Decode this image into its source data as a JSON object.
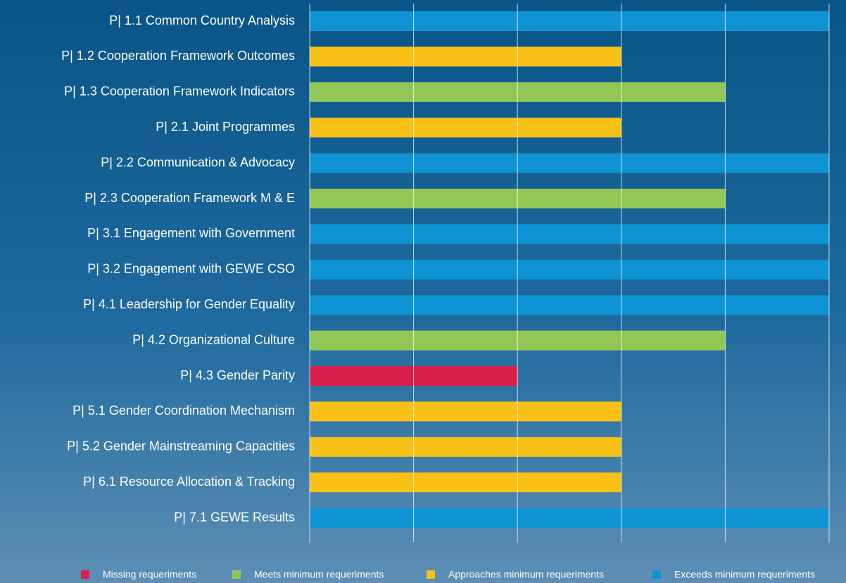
{
  "chart_data": {
    "type": "hbar",
    "categories": [
      "P| 1.1 Common Country Analysis",
      "P| 1.2 Cooperation Framework Outcomes",
      "P| 1.3 Cooperation Framework Indicators",
      "P| 2.1 Joint Programmes",
      "P| 2.2 Communication & Advocacy",
      "P| 2.3 Cooperation Framework M & E",
      "P| 3.1 Engagement with Government",
      "P| 3.2 Engagement with GEWE CSO",
      "P| 4.1 Leadership for Gender Equality",
      "P| 4.2 Organizational Culture",
      "P| 4.3 Gender Parity",
      "P| 5.1 Gender Coordination Mechanism",
      "P| 5.2 Gender Mainstreaming Capacities",
      "P| 6.1 Resource Allocation & Tracking",
      "P| 7.1 GEWE Results"
    ],
    "series": [
      {
        "name": "Missing requeriments",
        "color": "#d81e4a",
        "values": [
          null,
          null,
          null,
          null,
          null,
          null,
          null,
          null,
          null,
          null,
          2,
          null,
          null,
          null,
          null
        ]
      },
      {
        "name": "Meets minimum requeriments",
        "color": "#92c756",
        "values": [
          null,
          null,
          4,
          null,
          null,
          4,
          null,
          null,
          null,
          4,
          null,
          null,
          null,
          null,
          null
        ]
      },
      {
        "name": "Approaches minimum requeriments",
        "color": "#f9c116",
        "values": [
          null,
          3,
          null,
          3,
          null,
          null,
          null,
          null,
          null,
          null,
          null,
          3,
          3,
          3,
          null
        ]
      },
      {
        "name": "Exceeds minimum requeriments",
        "color": "#0e94d4",
        "values": [
          5,
          null,
          null,
          null,
          5,
          null,
          5,
          5,
          5,
          null,
          null,
          null,
          null,
          null,
          5
        ]
      }
    ],
    "xlim": [
      0,
      5
    ],
    "xticks": [
      0,
      1,
      2,
      3,
      4,
      5
    ],
    "grid": true
  }
}
